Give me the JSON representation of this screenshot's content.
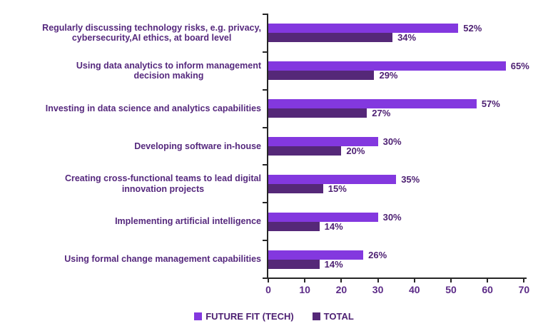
{
  "chart_data": {
    "type": "bar",
    "orientation": "horizontal",
    "title": "",
    "xlabel": "",
    "ylabel": "",
    "grid": false,
    "legend_position": "bottom",
    "xlim": [
      0,
      70
    ],
    "x_ticks": [
      0,
      10,
      20,
      30,
      40,
      50,
      60,
      70
    ],
    "categories": [
      "Regularly discussing technology risks, e.g. privacy, cybersecurity,AI ethics, at board level",
      "Using data analytics to inform management decision making",
      "Investing in data science and analytics capabilities",
      "Developing software in-house",
      "Creating cross-functional teams to lead digital innovation projects",
      "Implementing artificial intelligence",
      "Using formal change management capabilities"
    ],
    "category_lines": [
      [
        "Regularly discussing technology risks, e.g. privacy,",
        "cybersecurity,AI ethics, at board level"
      ],
      [
        "Using data analytics to inform management",
        "decision making"
      ],
      [
        "Investing in data science and analytics capabilities"
      ],
      [
        "Developing software in-house"
      ],
      [
        "Creating cross-functional teams to lead digital",
        "innovation projects"
      ],
      [
        "Implementing artificial intelligence"
      ],
      [
        "Using formal change management capabilities"
      ]
    ],
    "series": [
      {
        "name": "FUTURE FIT (TECH)",
        "color": "#8338DF",
        "values": [
          52,
          65,
          57,
          30,
          35,
          30,
          26
        ],
        "value_labels": [
          "52%",
          "65%",
          "57%",
          "30%",
          "35%",
          "30%",
          "26%"
        ]
      },
      {
        "name": "TOTAL",
        "color": "#552878",
        "values": [
          34,
          29,
          27,
          20,
          15,
          14,
          14
        ],
        "value_labels": [
          "34%",
          "29%",
          "27%",
          "20%",
          "15%",
          "14%",
          "14%"
        ]
      }
    ],
    "colors": {
      "category_text": "#55287D",
      "value_text": "#4E2173",
      "tick_text": "#5C2B87",
      "legend_text": "#4E2173",
      "axis_line": "#262626"
    }
  }
}
